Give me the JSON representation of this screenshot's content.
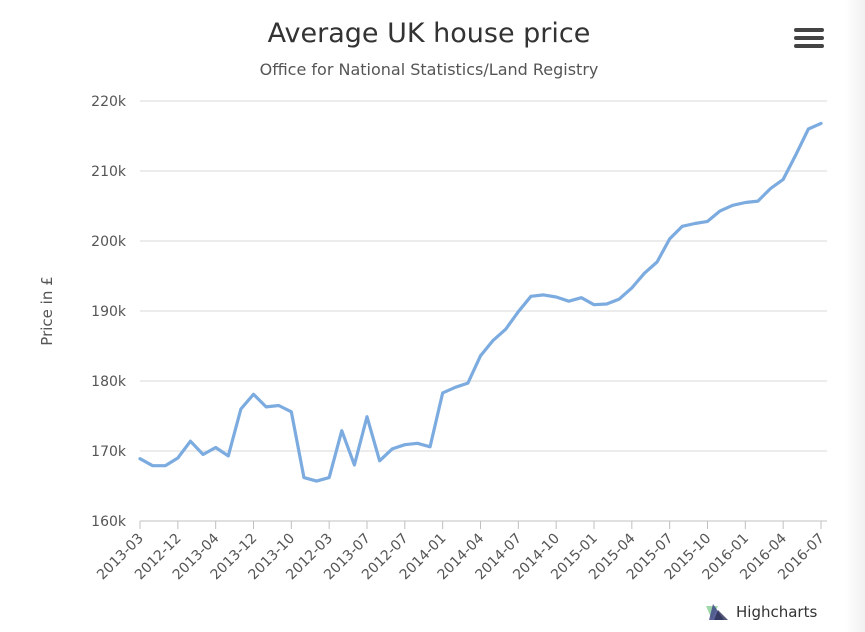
{
  "header": {
    "title": "Average UK house price",
    "subtitle": "Office for National Statistics/Land Registry"
  },
  "credits": {
    "label": "Highcharts"
  },
  "chart_data": {
    "type": "line",
    "title": "Average UK house price",
    "subtitle": "Office for National Statistics/Land Registry",
    "xlabel": "",
    "ylabel": "Price in £",
    "ylim": [
      160000,
      220000
    ],
    "y_ticks": [
      160000,
      170000,
      180000,
      190000,
      200000,
      210000,
      220000
    ],
    "y_tick_labels": [
      "160k",
      "170k",
      "180k",
      "190k",
      "200k",
      "210k",
      "220k"
    ],
    "x_tick_labels": [
      "2013-03",
      "2012-12",
      "2013-04",
      "2013-12",
      "2013-10",
      "2012-03",
      "2013-07",
      "2012-07",
      "2014-01",
      "2014-04",
      "2014-07",
      "2014-10",
      "2015-01",
      "2015-04",
      "2015-07",
      "2015-10",
      "2016-01",
      "2016-04",
      "2016-07"
    ],
    "x_tick_index_step": 3,
    "grid": true,
    "line_color": "#7cabe0",
    "series": [
      {
        "values": [
          168900,
          167900,
          167900,
          169000,
          171400,
          169500,
          170500,
          169300,
          176000,
          178100,
          176300,
          176500,
          175600,
          166200,
          165700,
          166200,
          172900,
          168000,
          174900,
          168600,
          170300,
          170900,
          171100,
          170600,
          178300,
          179100,
          179700,
          183600,
          185800,
          187400,
          189900,
          192100,
          192300,
          192000,
          191400,
          191900,
          190900,
          191000,
          191700,
          193300,
          195400,
          197000,
          200300,
          202100,
          202500,
          202800,
          204300,
          205100,
          205500,
          205700,
          207500,
          208800,
          212300,
          216000,
          216800
        ]
      }
    ]
  }
}
